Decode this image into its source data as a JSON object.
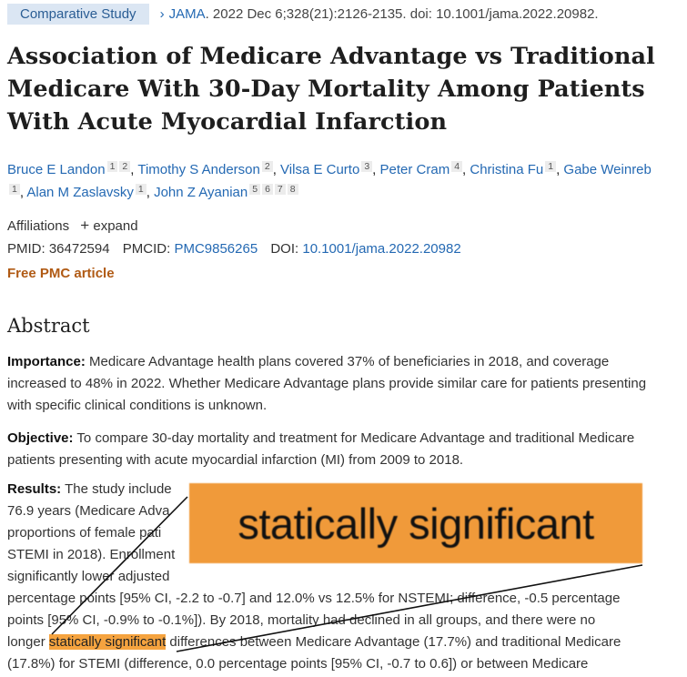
{
  "header": {
    "tag": "Comparative Study",
    "journal": "JAMA",
    "citation": ". 2022 Dec 6;328(21):2126-2135. doi: 10.1001/jama.2022.20982."
  },
  "title": "Association of Medicare Advantage vs Traditional Medicare With 30-Day Mortality Among Patients With Acute Myocardial Infarction",
  "authors": [
    {
      "name": "Bruce E Landon",
      "affils": [
        "1",
        "2"
      ]
    },
    {
      "name": "Timothy S Anderson",
      "affils": [
        "2"
      ]
    },
    {
      "name": "Vilsa E Curto",
      "affils": [
        "3"
      ]
    },
    {
      "name": "Peter Cram",
      "affils": [
        "4"
      ]
    },
    {
      "name": "Christina Fu",
      "affils": [
        "1"
      ]
    },
    {
      "name": "Gabe Weinreb",
      "affils": [
        "1"
      ]
    },
    {
      "name": "Alan M Zaslavsky",
      "affils": [
        "1"
      ]
    },
    {
      "name": "John Z Ayanian",
      "affils": [
        "5",
        "6",
        "7",
        "8"
      ]
    }
  ],
  "affiliations": {
    "label": "Affiliations",
    "expand_icon": "plus-icon",
    "expand_label": "expand"
  },
  "ids": {
    "pmid_label": "PMID:",
    "pmid": "36472594",
    "pmcid_label": "PMCID:",
    "pmcid": "PMC9856265",
    "doi_label": "DOI:",
    "doi": "10.1001/jama.2022.20982"
  },
  "free_pmc": "Free PMC article",
  "abstract": {
    "heading": "Abstract",
    "importance_label": "Importance:",
    "importance_text": " Medicare Advantage health plans covered 37% of beneficiaries in 2018, and coverage increased to 48% in 2022. Whether Medicare Advantage plans provide similar care for patients presenting with specific clinical conditions is unknown.",
    "objective_label": "Objective:",
    "objective_text": " To compare 30-day mortality and treatment for Medicare Advantage and traditional Medicare patients presenting with acute myocardial infarction (MI) from 2009 to 2018.",
    "results_label": "Results:",
    "results_lines": [
      " The study include",
      "76.9 years (Medicare Adva",
      "proportions of female pati",
      "STEMI in 2018). Enrollment",
      "significantly lower adjusted",
      "percentage points [95% CI, -2.2 to -0.7] and 12.0% vs 12.5% for NSTEMI; difference, -0.5 percentage",
      "points [95% CI, -0.9% to -0.1%]). By 2018, mortality had declined in all groups, and there were no"
    ],
    "results_tail_pre": "longer ",
    "highlight": "statically significant",
    "results_tail_post": " differences between Medicare Advantage (17.7%) and traditional Medicare",
    "results_last": "(17.8%) for STEMI (difference, 0.0 percentage points [95% CI, -0.7 to 0.6]) or between Medicare"
  },
  "zoom_callout": "statically significant"
}
